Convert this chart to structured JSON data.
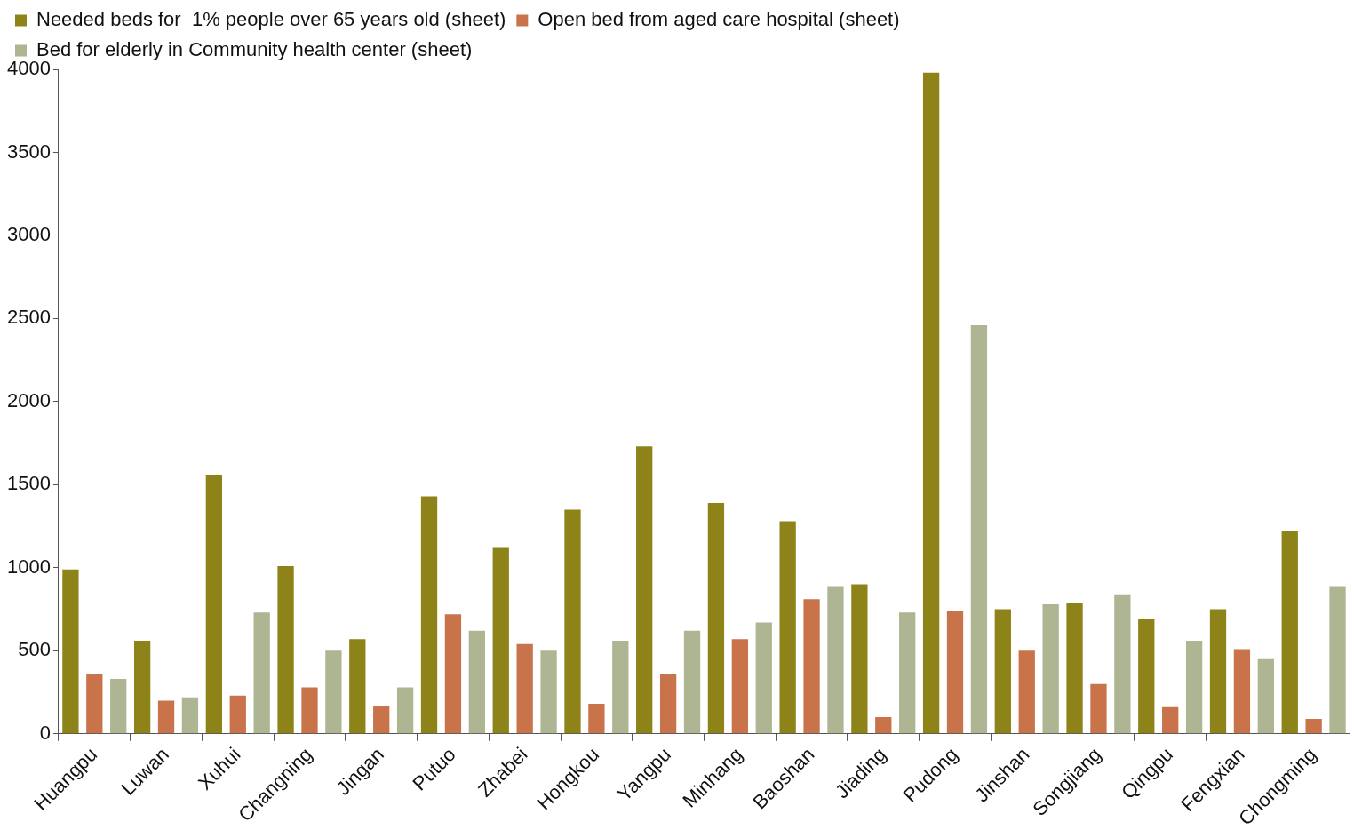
{
  "chart_data": {
    "type": "bar",
    "categories": [
      "Huangpu",
      "Luwan",
      "Xuhui",
      "Changning",
      "Jingan",
      "Putuo",
      "Zhabei",
      "Hongkou",
      "Yangpu",
      "Minhang",
      "Baoshan",
      "Jiading",
      "Pudong",
      "Jinshan",
      "Songjiang",
      "Qingpu",
      "Fengxian",
      "Chongming"
    ],
    "series": [
      {
        "name": "Needed beds for  1% people over 65 years old (sheet)",
        "color": "#8e8318",
        "values": [
          990,
          560,
          1560,
          1010,
          570,
          1430,
          1120,
          1350,
          1730,
          1390,
          1280,
          900,
          3980,
          750,
          790,
          690,
          750,
          1220
        ]
      },
      {
        "name": "Open bed from aged care hospital (sheet)",
        "color": "#c8734a",
        "values": [
          360,
          200,
          230,
          280,
          170,
          720,
          540,
          180,
          360,
          570,
          810,
          100,
          740,
          500,
          300,
          160,
          510,
          90
        ]
      },
      {
        "name": "Bed for elderly in Community health center (sheet)",
        "color": "#adb592",
        "values": [
          330,
          220,
          730,
          500,
          280,
          620,
          500,
          560,
          620,
          670,
          890,
          730,
          2460,
          780,
          840,
          560,
          450,
          890
        ]
      }
    ],
    "ylim": [
      0,
      4000
    ],
    "yticks": [
      0,
      500,
      1000,
      1500,
      2000,
      2500,
      3000,
      3500,
      4000
    ],
    "grid": false,
    "legend": "top"
  }
}
